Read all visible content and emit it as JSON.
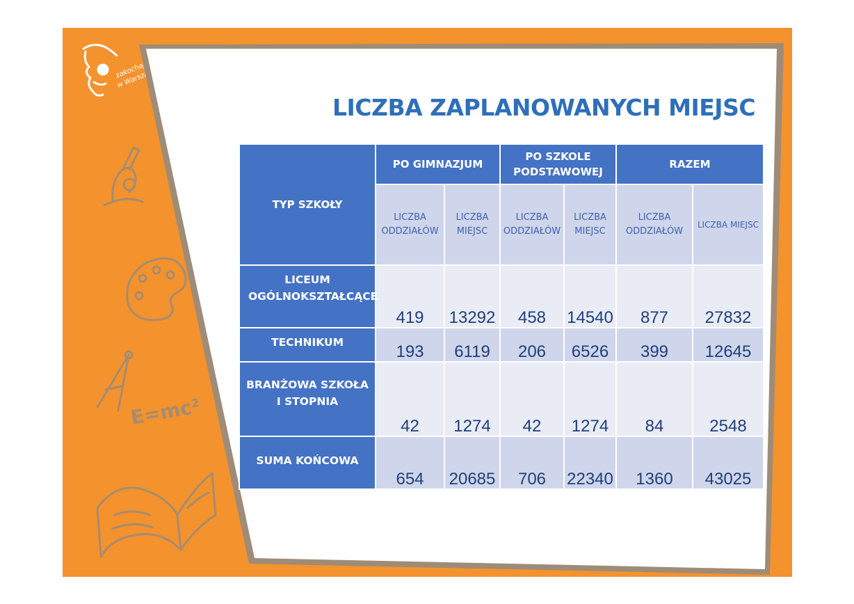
{
  "title": "LICZBA ZAPLANOWANYCH MIEJSC",
  "logo_text": [
    "zakochaj się",
    "w Warszawie"
  ],
  "decor_formula": "E=mc²",
  "colors": {
    "background_orange": "#F4922D",
    "card_border": "#9E8C78",
    "title_blue": "#2E6FB8",
    "header_blue": "#4472C4",
    "cell_light": "#E9EBF5",
    "cell_mid": "#CFD5EA",
    "number_text": "#1F3F7A"
  },
  "decor_icons": [
    "logo-icon",
    "microscope-icon",
    "palette-icon",
    "compass-icon",
    "book-icon"
  ],
  "table": {
    "corner_header": "TYP SZKOŁY",
    "groups": [
      "PO GIMNAZJUM",
      "PO SZKOLE PODSTAWOWEJ",
      "RAZEM"
    ],
    "subheaders": [
      "LICZBA ODDZIAŁÓW",
      "LICZBA MIEJSC",
      "LICZBA ODDZIAŁÓW",
      "LICZBA MIEJSC",
      "LICZBA ODDZIAŁÓW",
      "LICZBA MIEJSC"
    ],
    "rows": [
      {
        "label": "LICEUM OGÓLNOKSZTAŁCĄCE",
        "values": [
          "419",
          "13292",
          "458",
          "14540",
          "877",
          "27832"
        ]
      },
      {
        "label": "TECHNIKUM",
        "values": [
          "193",
          "6119",
          "206",
          "6526",
          "399",
          "12645"
        ]
      },
      {
        "label": "BRANŻOWA SZKOŁA I STOPNIA",
        "values": [
          "42",
          "1274",
          "42",
          "1274",
          "84",
          "2548"
        ]
      },
      {
        "label": "SUMA KOŃCOWA",
        "values": [
          "654",
          "20685",
          "706",
          "22340",
          "1360",
          "43025"
        ]
      }
    ]
  }
}
